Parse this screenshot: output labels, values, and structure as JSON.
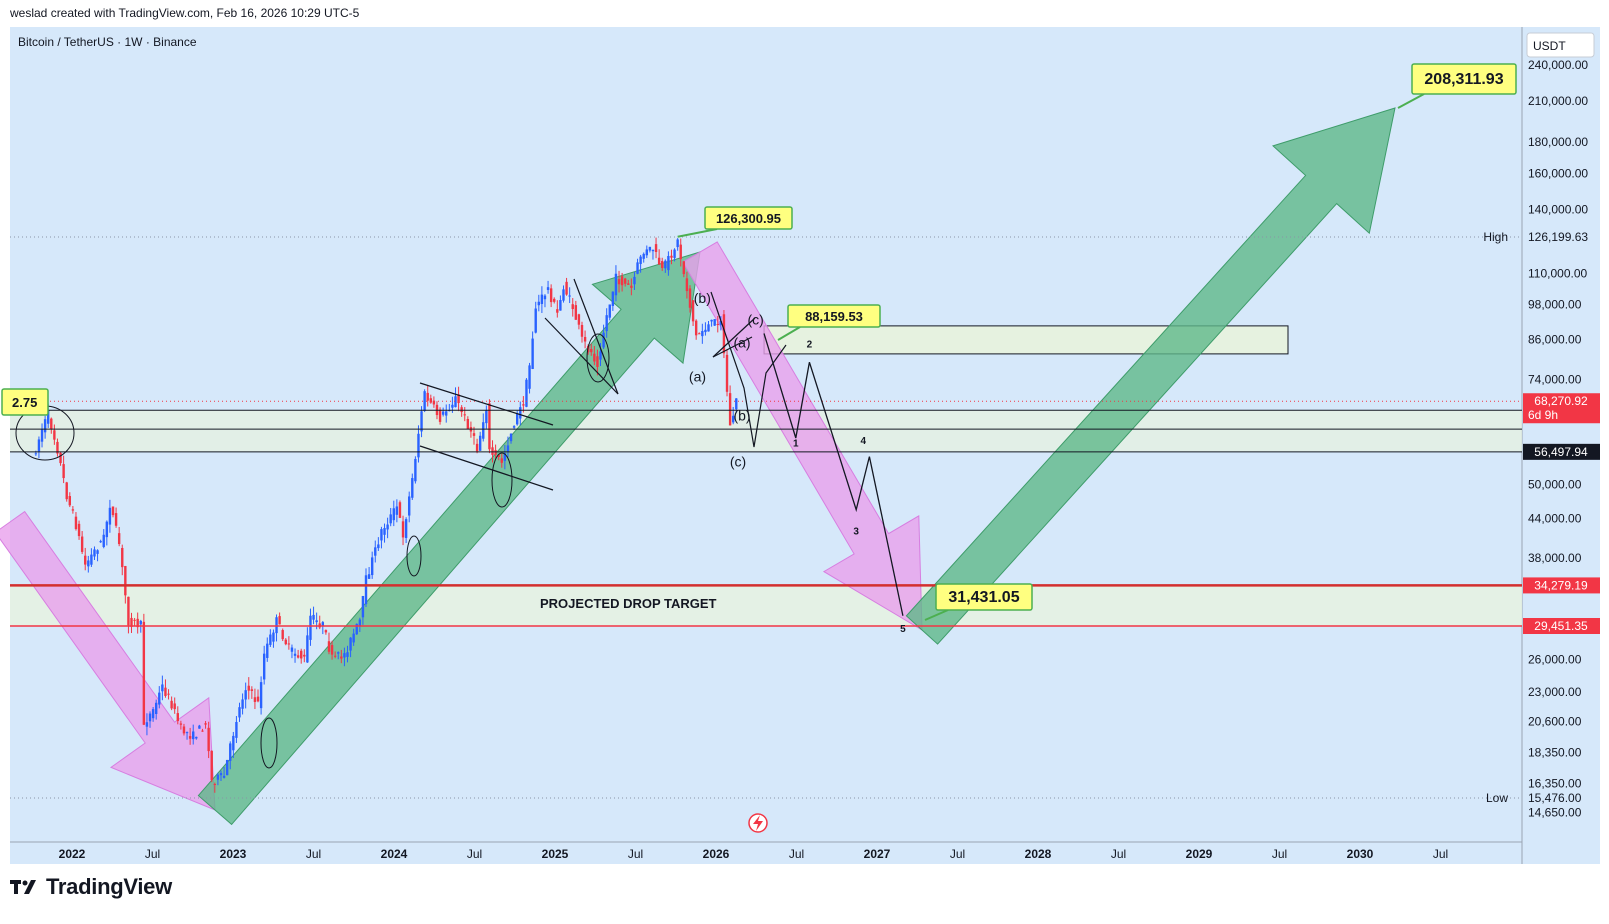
{
  "header": {
    "attribution": "weslad created with TradingView.com, Feb 16, 2026 10:29 UTC-5"
  },
  "footer": {
    "brand": "TradingView",
    "logo_icon": "tradingview-logo-icon"
  },
  "colors": {
    "chart_bg": "#d6e8fa",
    "candle_up": "#2962ff",
    "candle_down": "#f23645",
    "green_arrow": "#5fb88a",
    "pink_arrow": "#e8a0ec",
    "zone_fill": "#e6f2e0",
    "callout_bg": "#ffff80",
    "callout_border": "#4caf50"
  },
  "chart_data": {
    "type": "candlestick",
    "symbol": "Bitcoin / TetherUS · 1W · Binance",
    "currency": "USDT",
    "scale": "log",
    "ylim": [
      14650,
      250000
    ],
    "price_ticks": [
      "240,000.00",
      "210,000.00",
      "180,000.00",
      "160,000.00",
      "140,000.00",
      "110,000.00",
      "98,000.00",
      "86,000.00",
      "74,000.00",
      "50,000.00",
      "44,000.00",
      "38,000.00",
      "26,000.00",
      "23,000.00",
      "20,600.00",
      "18,350.00",
      "16,350.00",
      "14,650.00"
    ],
    "time_labels": [
      "2022",
      "Jul",
      "2023",
      "Jul",
      "2024",
      "Jul",
      "2025",
      "Jul",
      "2026",
      "Jul",
      "2027",
      "Jul",
      "2028",
      "Jul",
      "2029",
      "Jul",
      "2030",
      "Jul"
    ],
    "price_badges": [
      {
        "id": "current",
        "value": "68,270.92",
        "sub": "6d 9h",
        "price": 68270.92,
        "bg": "#f23645",
        "fg": "#ffffff"
      },
      {
        "id": "support",
        "value": "56,497.94",
        "price": 56497.94,
        "bg": "#131722",
        "fg": "#ffffff"
      },
      {
        "id": "zone-top",
        "value": "34,279.19",
        "price": 34279.19,
        "bg": "#f23645",
        "fg": "#ffffff"
      },
      {
        "id": "zone-bottom",
        "value": "29,451.35",
        "price": 29451.35,
        "bg": "#f23645",
        "fg": "#ffffff"
      }
    ],
    "high_marker": {
      "label": "High",
      "value": "126,199.63",
      "price": 126199.63
    },
    "low_marker": {
      "label": "Low",
      "value": "15,476.00",
      "price": 15476
    },
    "callouts": [
      {
        "id": "ath",
        "text": "126,300.95",
        "price": 126300.95,
        "date": "2025-10-06"
      },
      {
        "id": "wave-c-high",
        "text": "88,159.53",
        "price": 88159.53,
        "date": "2026-04-20"
      },
      {
        "id": "drop-target",
        "text": "31,431.05",
        "price": 31431.05,
        "date": "2027-03-15"
      },
      {
        "id": "target-high",
        "text": "208,311.93",
        "price": 208311.93,
        "date": "2029-11-15"
      },
      {
        "id": "left-partial",
        "text": "2.75",
        "price": 68800,
        "date": "2021-11-08"
      }
    ],
    "zone_label": "PROJECTED DROP TARGET",
    "wave_labels": [
      {
        "text": "(b)",
        "date": "2025-12-01",
        "price": 98500
      },
      {
        "text": "(c)",
        "date": "2026-04-01",
        "price": 91000
      },
      {
        "text": "(a)",
        "date": "2026-03-01",
        "price": 83500
      },
      {
        "text": "(a)",
        "date": "2025-11-20",
        "price": 73500
      },
      {
        "text": "(b)",
        "date": "2026-03-01",
        "price": 63500
      },
      {
        "text": "(c)",
        "date": "2026-02-20",
        "price": 53500
      },
      {
        "text": "2",
        "date": "2026-08-01",
        "price": 83500,
        "small": true
      },
      {
        "text": "1",
        "date": "2026-07-01",
        "price": 57600,
        "small": true
      },
      {
        "text": "4",
        "date": "2026-12-01",
        "price": 58200,
        "small": true
      },
      {
        "text": "3",
        "date": "2026-11-15",
        "price": 41500,
        "small": true
      },
      {
        "text": "5",
        "date": "2027-03-01",
        "price": 28800,
        "small": true
      }
    ],
    "projected_path": [
      {
        "date": "2026-04-20",
        "price": 88000
      },
      {
        "date": "2026-07-01",
        "price": 59500
      },
      {
        "date": "2026-08-01",
        "price": 79000
      },
      {
        "date": "2026-11-15",
        "price": 45500
      },
      {
        "date": "2026-12-15",
        "price": 55500
      },
      {
        "date": "2027-03-01",
        "price": 30600
      }
    ],
    "weekly_close": [
      {
        "date": "2021-10-04",
        "price": 55000
      },
      {
        "date": "2021-10-25",
        "price": 61500
      },
      {
        "date": "2021-11-08",
        "price": 65000
      },
      {
        "date": "2021-11-29",
        "price": 57000
      },
      {
        "date": "2021-12-20",
        "price": 48000
      },
      {
        "date": "2022-01-10",
        "price": 43000
      },
      {
        "date": "2022-01-31",
        "price": 37000
      },
      {
        "date": "2022-02-21",
        "price": 39000
      },
      {
        "date": "2022-03-14",
        "price": 41000
      },
      {
        "date": "2022-03-28",
        "price": 46500
      },
      {
        "date": "2022-04-18",
        "price": 40000
      },
      {
        "date": "2022-05-09",
        "price": 30000
      },
      {
        "date": "2022-06-06",
        "price": 29500
      },
      {
        "date": "2022-06-13",
        "price": 20500
      },
      {
        "date": "2022-07-04",
        "price": 21500
      },
      {
        "date": "2022-07-25",
        "price": 23500
      },
      {
        "date": "2022-08-15",
        "price": 22000
      },
      {
        "date": "2022-09-05",
        "price": 20000
      },
      {
        "date": "2022-10-03",
        "price": 19500
      },
      {
        "date": "2022-10-31",
        "price": 20500
      },
      {
        "date": "2022-11-14",
        "price": 16500
      },
      {
        "date": "2022-12-12",
        "price": 16800
      },
      {
        "date": "2023-01-09",
        "price": 20800
      },
      {
        "date": "2023-01-30",
        "price": 23500
      },
      {
        "date": "2023-02-27",
        "price": 22000
      },
      {
        "date": "2023-03-13",
        "price": 26500
      },
      {
        "date": "2023-04-10",
        "price": 30000
      },
      {
        "date": "2023-05-08",
        "price": 27000
      },
      {
        "date": "2023-06-12",
        "price": 26000
      },
      {
        "date": "2023-06-26",
        "price": 30500
      },
      {
        "date": "2023-07-24",
        "price": 29500
      },
      {
        "date": "2023-08-14",
        "price": 26000
      },
      {
        "date": "2023-09-11",
        "price": 26500
      },
      {
        "date": "2023-10-16",
        "price": 30000
      },
      {
        "date": "2023-10-30",
        "price": 35000
      },
      {
        "date": "2023-12-04",
        "price": 42000
      },
      {
        "date": "2024-01-08",
        "price": 46000
      },
      {
        "date": "2024-01-22",
        "price": 41500
      },
      {
        "date": "2024-02-12",
        "price": 51000
      },
      {
        "date": "2024-03-04",
        "price": 66000
      },
      {
        "date": "2024-03-11",
        "price": 70000
      },
      {
        "date": "2024-04-15",
        "price": 64000
      },
      {
        "date": "2024-05-20",
        "price": 69000
      },
      {
        "date": "2024-06-24",
        "price": 61000
      },
      {
        "date": "2024-07-08",
        "price": 57000
      },
      {
        "date": "2024-07-29",
        "price": 67000
      },
      {
        "date": "2024-08-05",
        "price": 56500
      },
      {
        "date": "2024-09-02",
        "price": 54500
      },
      {
        "date": "2024-09-30",
        "price": 63000
      },
      {
        "date": "2024-10-21",
        "price": 68000
      },
      {
        "date": "2024-11-04",
        "price": 78000
      },
      {
        "date": "2024-11-18",
        "price": 97000
      },
      {
        "date": "2024-12-16",
        "price": 104000
      },
      {
        "date": "2025-01-06",
        "price": 94500
      },
      {
        "date": "2025-01-20",
        "price": 105000
      },
      {
        "date": "2025-02-10",
        "price": 97000
      },
      {
        "date": "2025-03-03",
        "price": 86000
      },
      {
        "date": "2025-04-07",
        "price": 79000
      },
      {
        "date": "2025-04-28",
        "price": 94000
      },
      {
        "date": "2025-05-19",
        "price": 108000
      },
      {
        "date": "2025-06-23",
        "price": 104000
      },
      {
        "date": "2025-07-14",
        "price": 118000
      },
      {
        "date": "2025-08-11",
        "price": 121000
      },
      {
        "date": "2025-09-01",
        "price": 111000
      },
      {
        "date": "2025-10-06",
        "price": 124000
      },
      {
        "date": "2025-10-20",
        "price": 110000
      },
      {
        "date": "2025-11-17",
        "price": 87000
      },
      {
        "date": "2025-12-08",
        "price": 90000
      },
      {
        "date": "2026-01-12",
        "price": 93000
      },
      {
        "date": "2026-02-02",
        "price": 62000
      },
      {
        "date": "2026-02-16",
        "price": 68270.92
      }
    ]
  }
}
